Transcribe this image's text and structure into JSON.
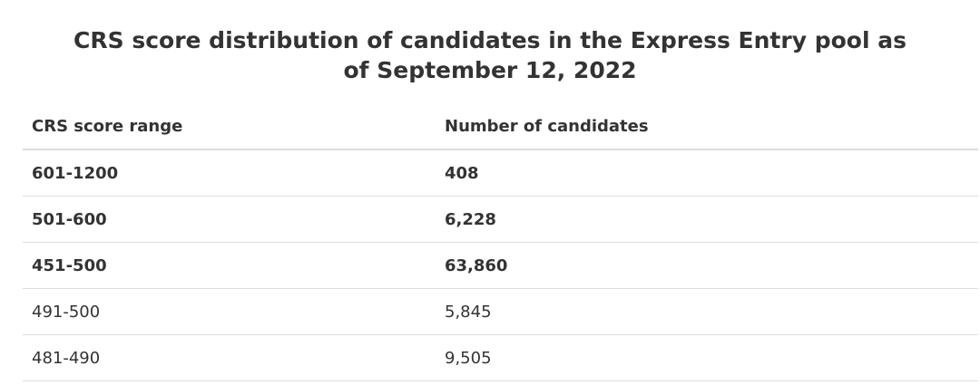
{
  "header": {
    "title": "CRS score distribution of candidates in the Express Entry pool as of September 12, 2022"
  },
  "table": {
    "columns": [
      "CRS score range",
      "Number of candidates"
    ],
    "rows": [
      [
        "601-1200",
        "408"
      ],
      [
        "501-600",
        "6,228"
      ],
      [
        "451-500",
        "63,860"
      ],
      [
        "491-500",
        "5,845"
      ],
      [
        "481-490",
        "9,505"
      ]
    ]
  }
}
